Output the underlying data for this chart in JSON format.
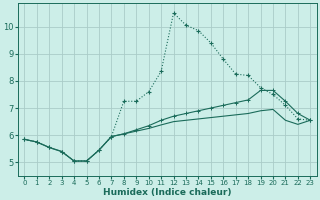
{
  "xlabel": "Humidex (Indice chaleur)",
  "bg_color": "#cceee8",
  "grid_color": "#aaccc8",
  "line_color": "#1a6b5a",
  "xlim": [
    -0.5,
    23.5
  ],
  "ylim": [
    4.5,
    10.85
  ],
  "xticks": [
    0,
    1,
    2,
    3,
    4,
    5,
    6,
    7,
    8,
    9,
    10,
    11,
    12,
    13,
    14,
    15,
    16,
    17,
    18,
    19,
    20,
    21,
    22,
    23
  ],
  "yticks": [
    5,
    6,
    7,
    8,
    9,
    10
  ],
  "curve1_x": [
    0,
    1,
    2,
    3,
    4,
    5,
    6,
    7,
    8,
    9,
    10,
    11,
    12,
    13,
    14,
    15,
    16,
    17,
    18,
    19,
    20,
    21,
    22,
    23
  ],
  "curve1_y": [
    5.85,
    5.75,
    5.55,
    5.4,
    5.05,
    5.05,
    5.45,
    5.95,
    7.25,
    7.25,
    7.6,
    8.35,
    10.5,
    10.05,
    9.85,
    9.4,
    8.8,
    8.25,
    8.2,
    7.75,
    7.5,
    7.1,
    6.6,
    6.55
  ],
  "curve2_x": [
    0,
    1,
    2,
    3,
    4,
    5,
    6,
    7,
    8,
    9,
    10,
    11,
    12,
    13,
    14,
    15,
    16,
    17,
    18,
    19,
    20,
    21,
    22,
    23
  ],
  "curve2_y": [
    5.85,
    5.75,
    5.55,
    5.4,
    5.05,
    5.05,
    5.45,
    5.95,
    6.05,
    6.2,
    6.35,
    6.55,
    6.7,
    6.8,
    6.9,
    7.0,
    7.1,
    7.2,
    7.3,
    7.65,
    7.65,
    7.25,
    6.8,
    6.55
  ],
  "curve3_x": [
    0,
    1,
    2,
    3,
    4,
    5,
    6,
    7,
    8,
    9,
    10,
    11,
    12,
    13,
    14,
    15,
    16,
    17,
    18,
    19,
    20,
    21,
    22,
    23
  ],
  "curve3_y": [
    5.85,
    5.75,
    5.55,
    5.4,
    5.05,
    5.05,
    5.45,
    5.95,
    6.05,
    6.15,
    6.25,
    6.38,
    6.5,
    6.55,
    6.6,
    6.65,
    6.7,
    6.75,
    6.8,
    6.9,
    6.95,
    6.55,
    6.4,
    6.55
  ]
}
